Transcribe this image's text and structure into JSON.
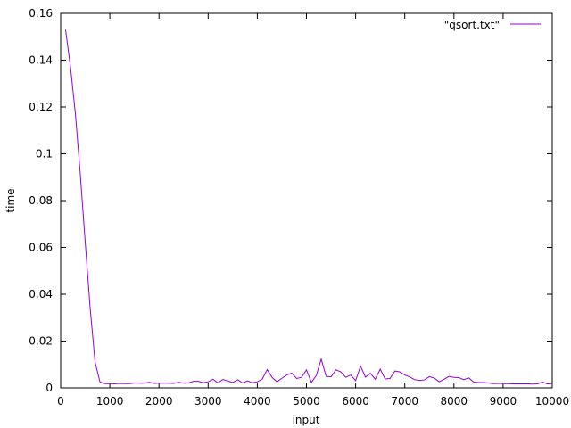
{
  "chart_data": {
    "type": "line",
    "title": "",
    "xlabel": "input",
    "ylabel": "time",
    "xlim": [
      0,
      10000
    ],
    "ylim": [
      0,
      0.16
    ],
    "x_ticks": [
      "0",
      "1000",
      "2000",
      "3000",
      "4000",
      "5000",
      "6000",
      "7000",
      "8000",
      "9000",
      "10000"
    ],
    "y_ticks": [
      "0",
      "0.02",
      "0.04",
      "0.06",
      "0.08",
      "0.1",
      "0.12",
      "0.14",
      "0.16"
    ],
    "grid": false,
    "legend_position": "top-right",
    "series": [
      {
        "name": "\"qsort.txt\"",
        "color": "#9400d3",
        "x": [
          100,
          200,
          300,
          400,
          500,
          600,
          700,
          800,
          900,
          1000,
          1100,
          1200,
          1300,
          1400,
          1500,
          1600,
          1700,
          1800,
          1900,
          2000,
          2100,
          2200,
          2300,
          2400,
          2500,
          2600,
          2700,
          2800,
          2900,
          3000,
          3100,
          3200,
          3300,
          3400,
          3500,
          3600,
          3700,
          3800,
          3900,
          4000,
          4100,
          4200,
          4300,
          4400,
          4500,
          4600,
          4700,
          4800,
          4900,
          5000,
          5100,
          5200,
          5300,
          5400,
          5500,
          5600,
          5700,
          5800,
          5900,
          6000,
          6100,
          6200,
          6300,
          6400,
          6500,
          6600,
          6700,
          6800,
          6900,
          7000,
          7100,
          7200,
          7300,
          7400,
          7500,
          7600,
          7700,
          7800,
          7900,
          8000,
          8100,
          8200,
          8300,
          8400,
          8500,
          8600,
          8700,
          8800,
          8900,
          9000,
          9100,
          9200,
          9300,
          9400,
          9500,
          9600,
          9700,
          9800,
          9900,
          10000
        ],
        "y": [
          0.153,
          0.137,
          0.117,
          0.091,
          0.062,
          0.034,
          0.011,
          0.0025,
          0.0018,
          0.0018,
          0.0017,
          0.0019,
          0.0018,
          0.0018,
          0.0021,
          0.002,
          0.002,
          0.0024,
          0.0019,
          0.002,
          0.002,
          0.002,
          0.0019,
          0.0024,
          0.002,
          0.0021,
          0.0028,
          0.0028,
          0.0022,
          0.0026,
          0.0037,
          0.0021,
          0.0036,
          0.0029,
          0.0023,
          0.0035,
          0.0021,
          0.003,
          0.0022,
          0.0026,
          0.0037,
          0.0078,
          0.0045,
          0.0026,
          0.0041,
          0.0055,
          0.0063,
          0.004,
          0.0045,
          0.0077,
          0.0023,
          0.0053,
          0.0123,
          0.0049,
          0.0047,
          0.0077,
          0.0068,
          0.0045,
          0.0055,
          0.0031,
          0.0093,
          0.0046,
          0.0062,
          0.0037,
          0.008,
          0.0038,
          0.004,
          0.0072,
          0.0068,
          0.0055,
          0.0047,
          0.0035,
          0.0032,
          0.0034,
          0.0048,
          0.0042,
          0.0026,
          0.0037,
          0.0049,
          0.0045,
          0.0044,
          0.0035,
          0.0043,
          0.0025,
          0.0023,
          0.0023,
          0.0021,
          0.0018,
          0.0019,
          0.0018,
          0.0018,
          0.0017,
          0.0017,
          0.0017,
          0.0017,
          0.0016,
          0.0017,
          0.0025,
          0.0017,
          0.0018
        ]
      }
    ]
  }
}
